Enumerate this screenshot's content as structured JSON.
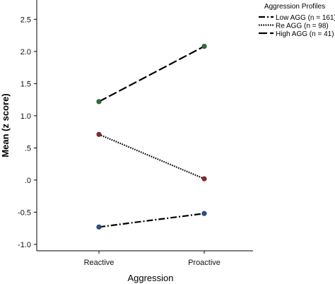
{
  "chart_data": {
    "type": "line",
    "xlabel": "Aggression",
    "ylabel": "Mean (z score)",
    "categories": [
      "Reactive",
      "Proactive"
    ],
    "ylim": [
      -1.1,
      2.7
    ],
    "yticks": [
      {
        "value": 2.5,
        "label": "2.5"
      },
      {
        "value": 2.0,
        "label": "2.0"
      },
      {
        "value": 1.5,
        "label": "1.5"
      },
      {
        "value": 1.0,
        "label": "1.0"
      },
      {
        "value": 0.5,
        "label": ".5"
      },
      {
        "value": 0.0,
        "label": ".0"
      },
      {
        "value": -0.5,
        "label": "-0.5"
      },
      {
        "value": -1.0,
        "label": "-1.0"
      }
    ],
    "legend_title": "Aggression Profiles",
    "legend_position": "top-right",
    "grid": false,
    "series": [
      {
        "name": "Low AGG (n = 161)",
        "values": [
          -0.73,
          -0.52
        ],
        "dash": "dashdot",
        "marker_color": "#1f4e9c"
      },
      {
        "name": "Re AGG (n = 98)",
        "values": [
          0.71,
          0.02
        ],
        "dash": "dotted",
        "marker_color": "#a01c1c"
      },
      {
        "name": "High AGG (n = 41)",
        "values": [
          1.22,
          2.08
        ],
        "dash": "dashed",
        "marker_color": "#1f7a2a"
      }
    ]
  }
}
